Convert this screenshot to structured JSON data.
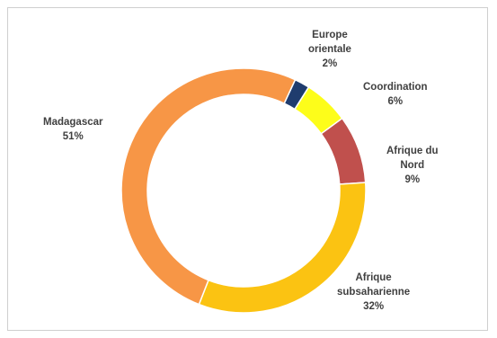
{
  "chart_data": {
    "type": "pie",
    "variant": "donut",
    "slices": [
      {
        "label_lines": [
          "Europe",
          "orientale"
        ],
        "percent_label": "2%",
        "value": 2,
        "color": "#1f3c6e"
      },
      {
        "label_lines": [
          "Coordination"
        ],
        "percent_label": "6%",
        "value": 6,
        "color": "#fdfd1a"
      },
      {
        "label_lines": [
          "Afrique du",
          "Nord"
        ],
        "percent_label": "9%",
        "value": 9,
        "color": "#c0504d"
      },
      {
        "label_lines": [
          "Afrique",
          "subsaharienne"
        ],
        "percent_label": "32%",
        "value": 32,
        "color": "#fbc312"
      },
      {
        "label_lines": [
          "Madagascar"
        ],
        "percent_label": "51%",
        "value": 51,
        "color": "#f79646"
      }
    ]
  }
}
